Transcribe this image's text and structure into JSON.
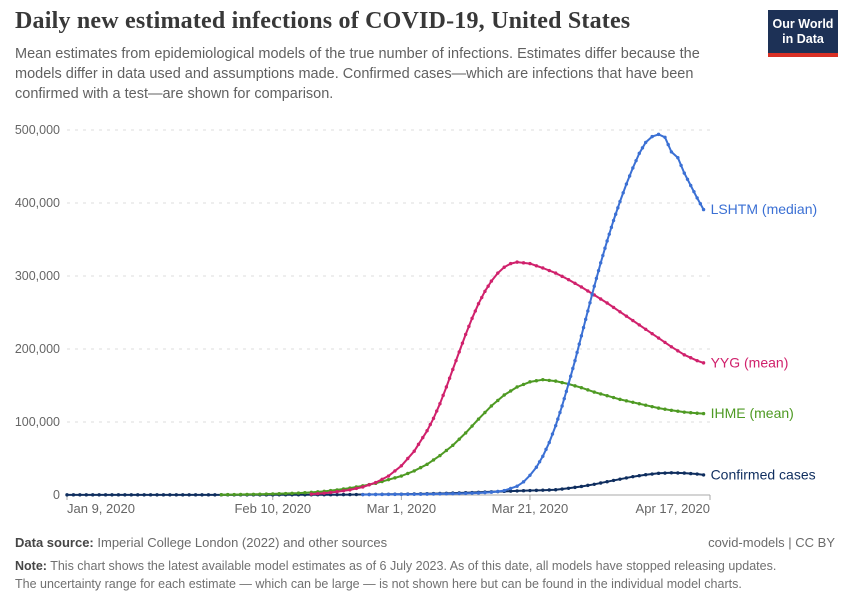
{
  "header": {
    "title": "Daily new estimated infections of COVID-19, United States",
    "subtitle": {
      "line1": "Mean estimates from epidemiological models of the true number of infections. Estimates differ because the",
      "line2": "models differ in data used and assumptions made. Confirmed cases—which are infections that have been",
      "line3": "confirmed with a test—are shown for comparison."
    },
    "logo": {
      "line1": "Our World",
      "line2": "in Data",
      "bg_color": "#1d3156",
      "accent_color": "#d93025"
    }
  },
  "footer": {
    "datasource_label": "Data source:",
    "datasource_text": "Imperial College London (2022) and other sources",
    "license": "covid-models | CC BY",
    "note_label": "Note:",
    "note_line1": "This chart shows the latest available model estimates as of 6 July 2023. As of this date, all models have stopped releasing updates.",
    "note_line2": "The uncertainty range for each estimate — which can be large — is not shown here but can be found in the individual model charts."
  },
  "chart_data": {
    "type": "line",
    "title": "Daily new estimated infections of COVID-19, United States",
    "x_unit": "date (day 0 = Jan 9, 2020)",
    "x_domain_days": [
      0,
      100
    ],
    "x_ticks": [
      {
        "day": 0,
        "label": "Jan 9, 2020",
        "anchor": "start"
      },
      {
        "day": 32,
        "label": "Feb 10, 2020",
        "anchor": "middle"
      },
      {
        "day": 52,
        "label": "Mar 1, 2020",
        "anchor": "middle"
      },
      {
        "day": 72,
        "label": "Mar 21, 2020",
        "anchor": "middle"
      },
      {
        "day": 99,
        "label": "Apr 17, 2020",
        "anchor": "end"
      }
    ],
    "y_axis": {
      "min": 0,
      "max": 500000,
      "tick_interval": 100000,
      "tick_labels": [
        "0",
        "100,000",
        "200,000",
        "300,000",
        "400,000",
        "500,000"
      ]
    },
    "grid": true,
    "legend_position": "end-of-line",
    "series": [
      {
        "id": "confirmed",
        "label": "Confirmed cases",
        "color": "#0f2e5f",
        "points": [
          [
            0,
            200
          ],
          [
            2,
            200
          ],
          [
            4,
            200
          ],
          [
            6,
            200
          ],
          [
            8,
            200
          ],
          [
            10,
            200
          ],
          [
            12,
            200
          ],
          [
            14,
            200
          ],
          [
            16,
            200
          ],
          [
            18,
            200
          ],
          [
            20,
            200
          ],
          [
            22,
            200
          ],
          [
            24,
            200
          ],
          [
            26,
            200
          ],
          [
            28,
            250
          ],
          [
            30,
            250
          ],
          [
            32,
            250
          ],
          [
            34,
            300
          ],
          [
            36,
            300
          ],
          [
            38,
            350
          ],
          [
            40,
            400
          ],
          [
            42,
            450
          ],
          [
            44,
            550
          ],
          [
            46,
            650
          ],
          [
            48,
            800
          ],
          [
            50,
            950
          ],
          [
            52,
            1150
          ],
          [
            54,
            1400
          ],
          [
            56,
            1700
          ],
          [
            58,
            2100
          ],
          [
            60,
            2600
          ],
          [
            62,
            3100
          ],
          [
            64,
            3700
          ],
          [
            66,
            4400
          ],
          [
            68,
            5000
          ],
          [
            70,
            5600
          ],
          [
            72,
            6100
          ],
          [
            74,
            6600
          ],
          [
            76,
            7200
          ],
          [
            78,
            9200
          ],
          [
            80,
            11700
          ],
          [
            82,
            14700
          ],
          [
            84,
            18200
          ],
          [
            86,
            21700
          ],
          [
            88,
            25100
          ],
          [
            90,
            27800
          ],
          [
            92,
            29700
          ],
          [
            94,
            30400
          ],
          [
            96,
            30000
          ],
          [
            98,
            28700
          ],
          [
            99,
            27500
          ]
        ]
      },
      {
        "id": "ihme",
        "label": "IHME (mean)",
        "color": "#4e9a23",
        "points": [
          [
            24,
            400
          ],
          [
            26,
            600
          ],
          [
            28,
            800
          ],
          [
            30,
            1100
          ],
          [
            32,
            1500
          ],
          [
            34,
            2000
          ],
          [
            36,
            2600
          ],
          [
            38,
            3600
          ],
          [
            40,
            5000
          ],
          [
            42,
            7000
          ],
          [
            44,
            9500
          ],
          [
            46,
            12500
          ],
          [
            48,
            16000
          ],
          [
            50,
            21000
          ],
          [
            52,
            26000
          ],
          [
            54,
            33000
          ],
          [
            56,
            42000
          ],
          [
            58,
            54000
          ],
          [
            60,
            68000
          ],
          [
            62,
            85000
          ],
          [
            64,
            104000
          ],
          [
            66,
            122000
          ],
          [
            68,
            137000
          ],
          [
            70,
            148000
          ],
          [
            72,
            155000
          ],
          [
            74,
            158000
          ],
          [
            76,
            156000
          ],
          [
            78,
            152000
          ],
          [
            80,
            147000
          ],
          [
            82,
            141000
          ],
          [
            84,
            136000
          ],
          [
            86,
            131000
          ],
          [
            88,
            127000
          ],
          [
            90,
            123000
          ],
          [
            92,
            119000
          ],
          [
            94,
            116000
          ],
          [
            96,
            113500
          ],
          [
            98,
            112000
          ],
          [
            99,
            111500
          ]
        ]
      },
      {
        "id": "yyg",
        "label": "YYG (mean)",
        "color": "#d0216c",
        "points": [
          [
            38,
            1200
          ],
          [
            40,
            2500
          ],
          [
            42,
            4500
          ],
          [
            44,
            7000
          ],
          [
            46,
            11000
          ],
          [
            48,
            17000
          ],
          [
            50,
            26000
          ],
          [
            52,
            40000
          ],
          [
            54,
            60000
          ],
          [
            56,
            88000
          ],
          [
            57,
            105000
          ],
          [
            58,
            125000
          ],
          [
            59,
            148000
          ],
          [
            60,
            172000
          ],
          [
            61,
            196000
          ],
          [
            62,
            220000
          ],
          [
            63,
            242000
          ],
          [
            64,
            262000
          ],
          [
            65,
            279000
          ],
          [
            66,
            293000
          ],
          [
            67,
            304000
          ],
          [
            68,
            312000
          ],
          [
            69,
            317000
          ],
          [
            70,
            319000
          ],
          [
            71,
            318000
          ],
          [
            72,
            317000
          ],
          [
            74,
            311000
          ],
          [
            76,
            304000
          ],
          [
            78,
            295000
          ],
          [
            80,
            285000
          ],
          [
            82,
            274000
          ],
          [
            84,
            263000
          ],
          [
            86,
            251000
          ],
          [
            88,
            239000
          ],
          [
            90,
            227000
          ],
          [
            92,
            215000
          ],
          [
            94,
            203000
          ],
          [
            96,
            192000
          ],
          [
            98,
            184000
          ],
          [
            99,
            181000
          ]
        ]
      },
      {
        "id": "lshtm",
        "label": "LSHTM (median)",
        "color": "#3b70d4",
        "points": [
          [
            46,
            600
          ],
          [
            48,
            700
          ],
          [
            50,
            800
          ],
          [
            52,
            900
          ],
          [
            54,
            1000
          ],
          [
            56,
            1200
          ],
          [
            58,
            1500
          ],
          [
            60,
            1800
          ],
          [
            62,
            2200
          ],
          [
            64,
            2800
          ],
          [
            66,
            3800
          ],
          [
            68,
            6000
          ],
          [
            70,
            12000
          ],
          [
            71,
            18000
          ],
          [
            72,
            27000
          ],
          [
            73,
            38000
          ],
          [
            74,
            53000
          ],
          [
            75,
            72000
          ],
          [
            76,
            95000
          ],
          [
            77,
            122000
          ],
          [
            78,
            152000
          ],
          [
            79,
            184000
          ],
          [
            80,
            218000
          ],
          [
            81,
            252000
          ],
          [
            82,
            286000
          ],
          [
            83,
            318000
          ],
          [
            84,
            348000
          ],
          [
            85,
            376000
          ],
          [
            86,
            402000
          ],
          [
            87,
            426000
          ],
          [
            88,
            448000
          ],
          [
            89,
            468000
          ],
          [
            90,
            483000
          ],
          [
            91,
            491000
          ],
          [
            92,
            494000
          ],
          [
            93,
            490000
          ],
          [
            94,
            470000
          ],
          [
            95,
            462000
          ],
          [
            96,
            441000
          ],
          [
            97,
            424000
          ],
          [
            98,
            407000
          ],
          [
            99,
            391000
          ]
        ]
      }
    ]
  }
}
